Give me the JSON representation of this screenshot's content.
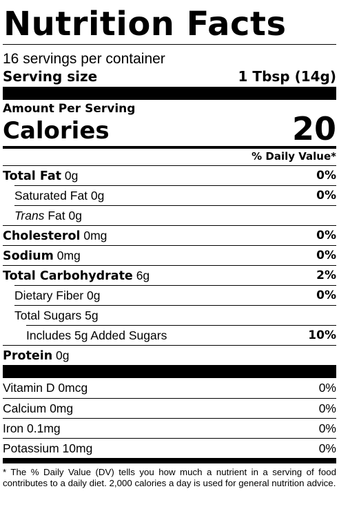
{
  "title": "Nutrition Facts",
  "servings_per_container": "16 servings per container",
  "serving_size": {
    "label": "Serving size",
    "value": "1 Tbsp (14g)"
  },
  "amount_per_serving": "Amount Per Serving",
  "calories": {
    "label": "Calories",
    "value": "20"
  },
  "daily_value_header": "% Daily Value*",
  "nutrients": {
    "total_fat": {
      "name": "Total Fat",
      "amount": "0g",
      "dv": "0%"
    },
    "saturated_fat": {
      "name": "Saturated Fat",
      "amount": "0g",
      "dv": "0%"
    },
    "trans_fat": {
      "name_italic": "Trans",
      "name_rest": "Fat",
      "amount": "0g"
    },
    "cholesterol": {
      "name": "Cholesterol",
      "amount": "0mg",
      "dv": "0%"
    },
    "sodium": {
      "name": "Sodium",
      "amount": "0mg",
      "dv": "0%"
    },
    "total_carbohydrate": {
      "name": "Total Carbohydrate",
      "amount": "6g",
      "dv": "2%"
    },
    "dietary_fiber": {
      "name": "Dietary Fiber",
      "amount": "0g",
      "dv": "0%"
    },
    "total_sugars": {
      "name": "Total Sugars",
      "amount": "5g"
    },
    "added_sugars": {
      "text": "Includes 5g Added Sugars",
      "dv": "10%"
    },
    "protein": {
      "name": "Protein",
      "amount": "0g"
    }
  },
  "vitamins": [
    {
      "text": "Vitamin D 0mcg",
      "dv": "0%"
    },
    {
      "text": "Calcium 0mg",
      "dv": "0%"
    },
    {
      "text": "Iron 0.1mg",
      "dv": "0%"
    },
    {
      "text": "Potassium 10mg",
      "dv": "0%"
    }
  ],
  "footnote": "* The % Daily Value (DV) tells you how much a nutrient in a serving of food contributes to a daily diet. 2,000 calories a day is used for general nutrition advice."
}
